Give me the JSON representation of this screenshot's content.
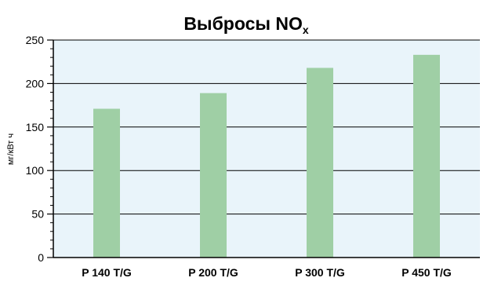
{
  "chart_data": {
    "type": "bar",
    "title": "Выбросы NO",
    "title_subscript": "x",
    "xlabel": "",
    "ylabel": "мг/кВт ч",
    "categories": [
      "P 140 T/G",
      "P 200 T/G",
      "P 300 T/G",
      "P 450 T/G"
    ],
    "values": [
      171,
      189,
      218,
      233
    ],
    "ylim": [
      0,
      250
    ],
    "yticks": [
      0,
      50,
      100,
      150,
      200,
      250
    ],
    "minor_tick_step": 10,
    "grid": true,
    "legend": "none",
    "colors": {
      "bar": "#9fcfa5",
      "plot_background": "#e9f4fa",
      "grid": "#000000",
      "axis": "#000000"
    }
  }
}
